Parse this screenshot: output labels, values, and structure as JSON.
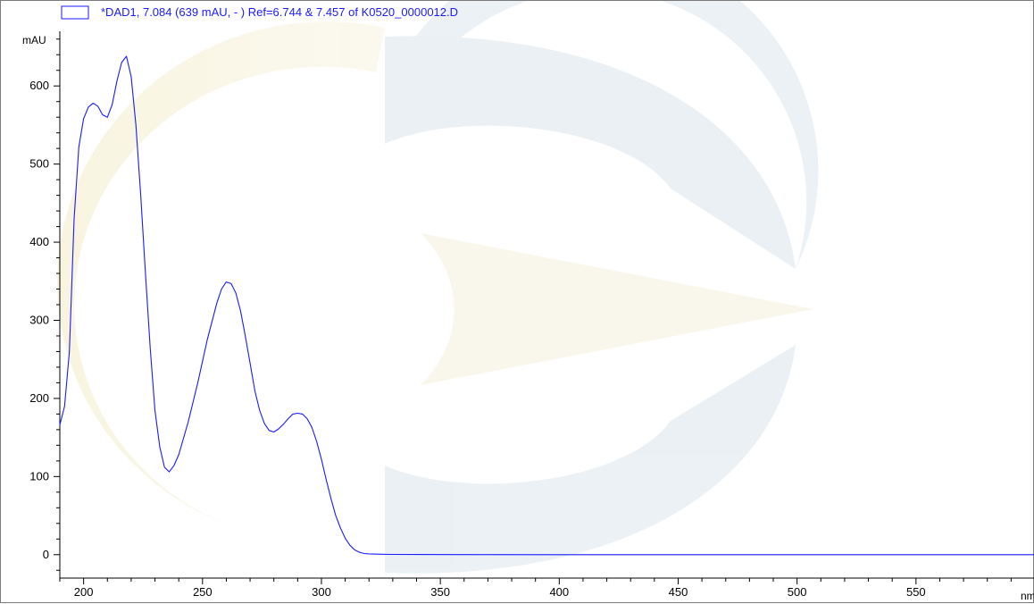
{
  "legend": {
    "text": "*DAD1, 7.084 (639 mAU, - ) Ref=6.744 & 7.457 of K0520_0000012.D",
    "color": "#1a1aff"
  },
  "chart_data": {
    "type": "line",
    "ylabel": "mAU",
    "xlabel": "nm",
    "xlim": [
      190,
      600
    ],
    "ylim": [
      -30,
      670
    ],
    "xticks": [
      200,
      250,
      300,
      350,
      400,
      450,
      500,
      550
    ],
    "yticks": [
      0,
      100,
      200,
      300,
      400,
      500,
      600
    ],
    "line_color": "#1a1aff",
    "series": [
      {
        "x": [
          190,
          192,
          194,
          196,
          198,
          200,
          202,
          204,
          206,
          208,
          210,
          212,
          214,
          216,
          218,
          220,
          222,
          224,
          226,
          228,
          230,
          232,
          234,
          236,
          238,
          240,
          244,
          248,
          252,
          256,
          258,
          260,
          262,
          264,
          266,
          268,
          270,
          272,
          274,
          276,
          278,
          280,
          282,
          284,
          286,
          288,
          290,
          292,
          294,
          296,
          298,
          300,
          302,
          304,
          306,
          308,
          310,
          312,
          314,
          316,
          318,
          320,
          325,
          330,
          340,
          400,
          500,
          600
        ],
        "y": [
          166,
          190,
          260,
          430,
          522,
          558,
          573,
          578,
          574,
          563,
          560,
          576,
          606,
          630,
          638,
          612,
          550,
          460,
          360,
          265,
          185,
          138,
          112,
          106,
          114,
          128,
          170,
          220,
          275,
          322,
          340,
          349,
          347,
          335,
          312,
          280,
          245,
          210,
          185,
          168,
          159,
          157,
          161,
          167,
          174,
          180,
          181,
          180,
          174,
          163,
          145,
          122,
          96,
          72,
          50,
          34,
          21,
          12,
          6,
          3,
          1.5,
          1,
          0.5,
          0.3,
          0.2,
          0,
          0,
          0
        ]
      }
    ]
  }
}
